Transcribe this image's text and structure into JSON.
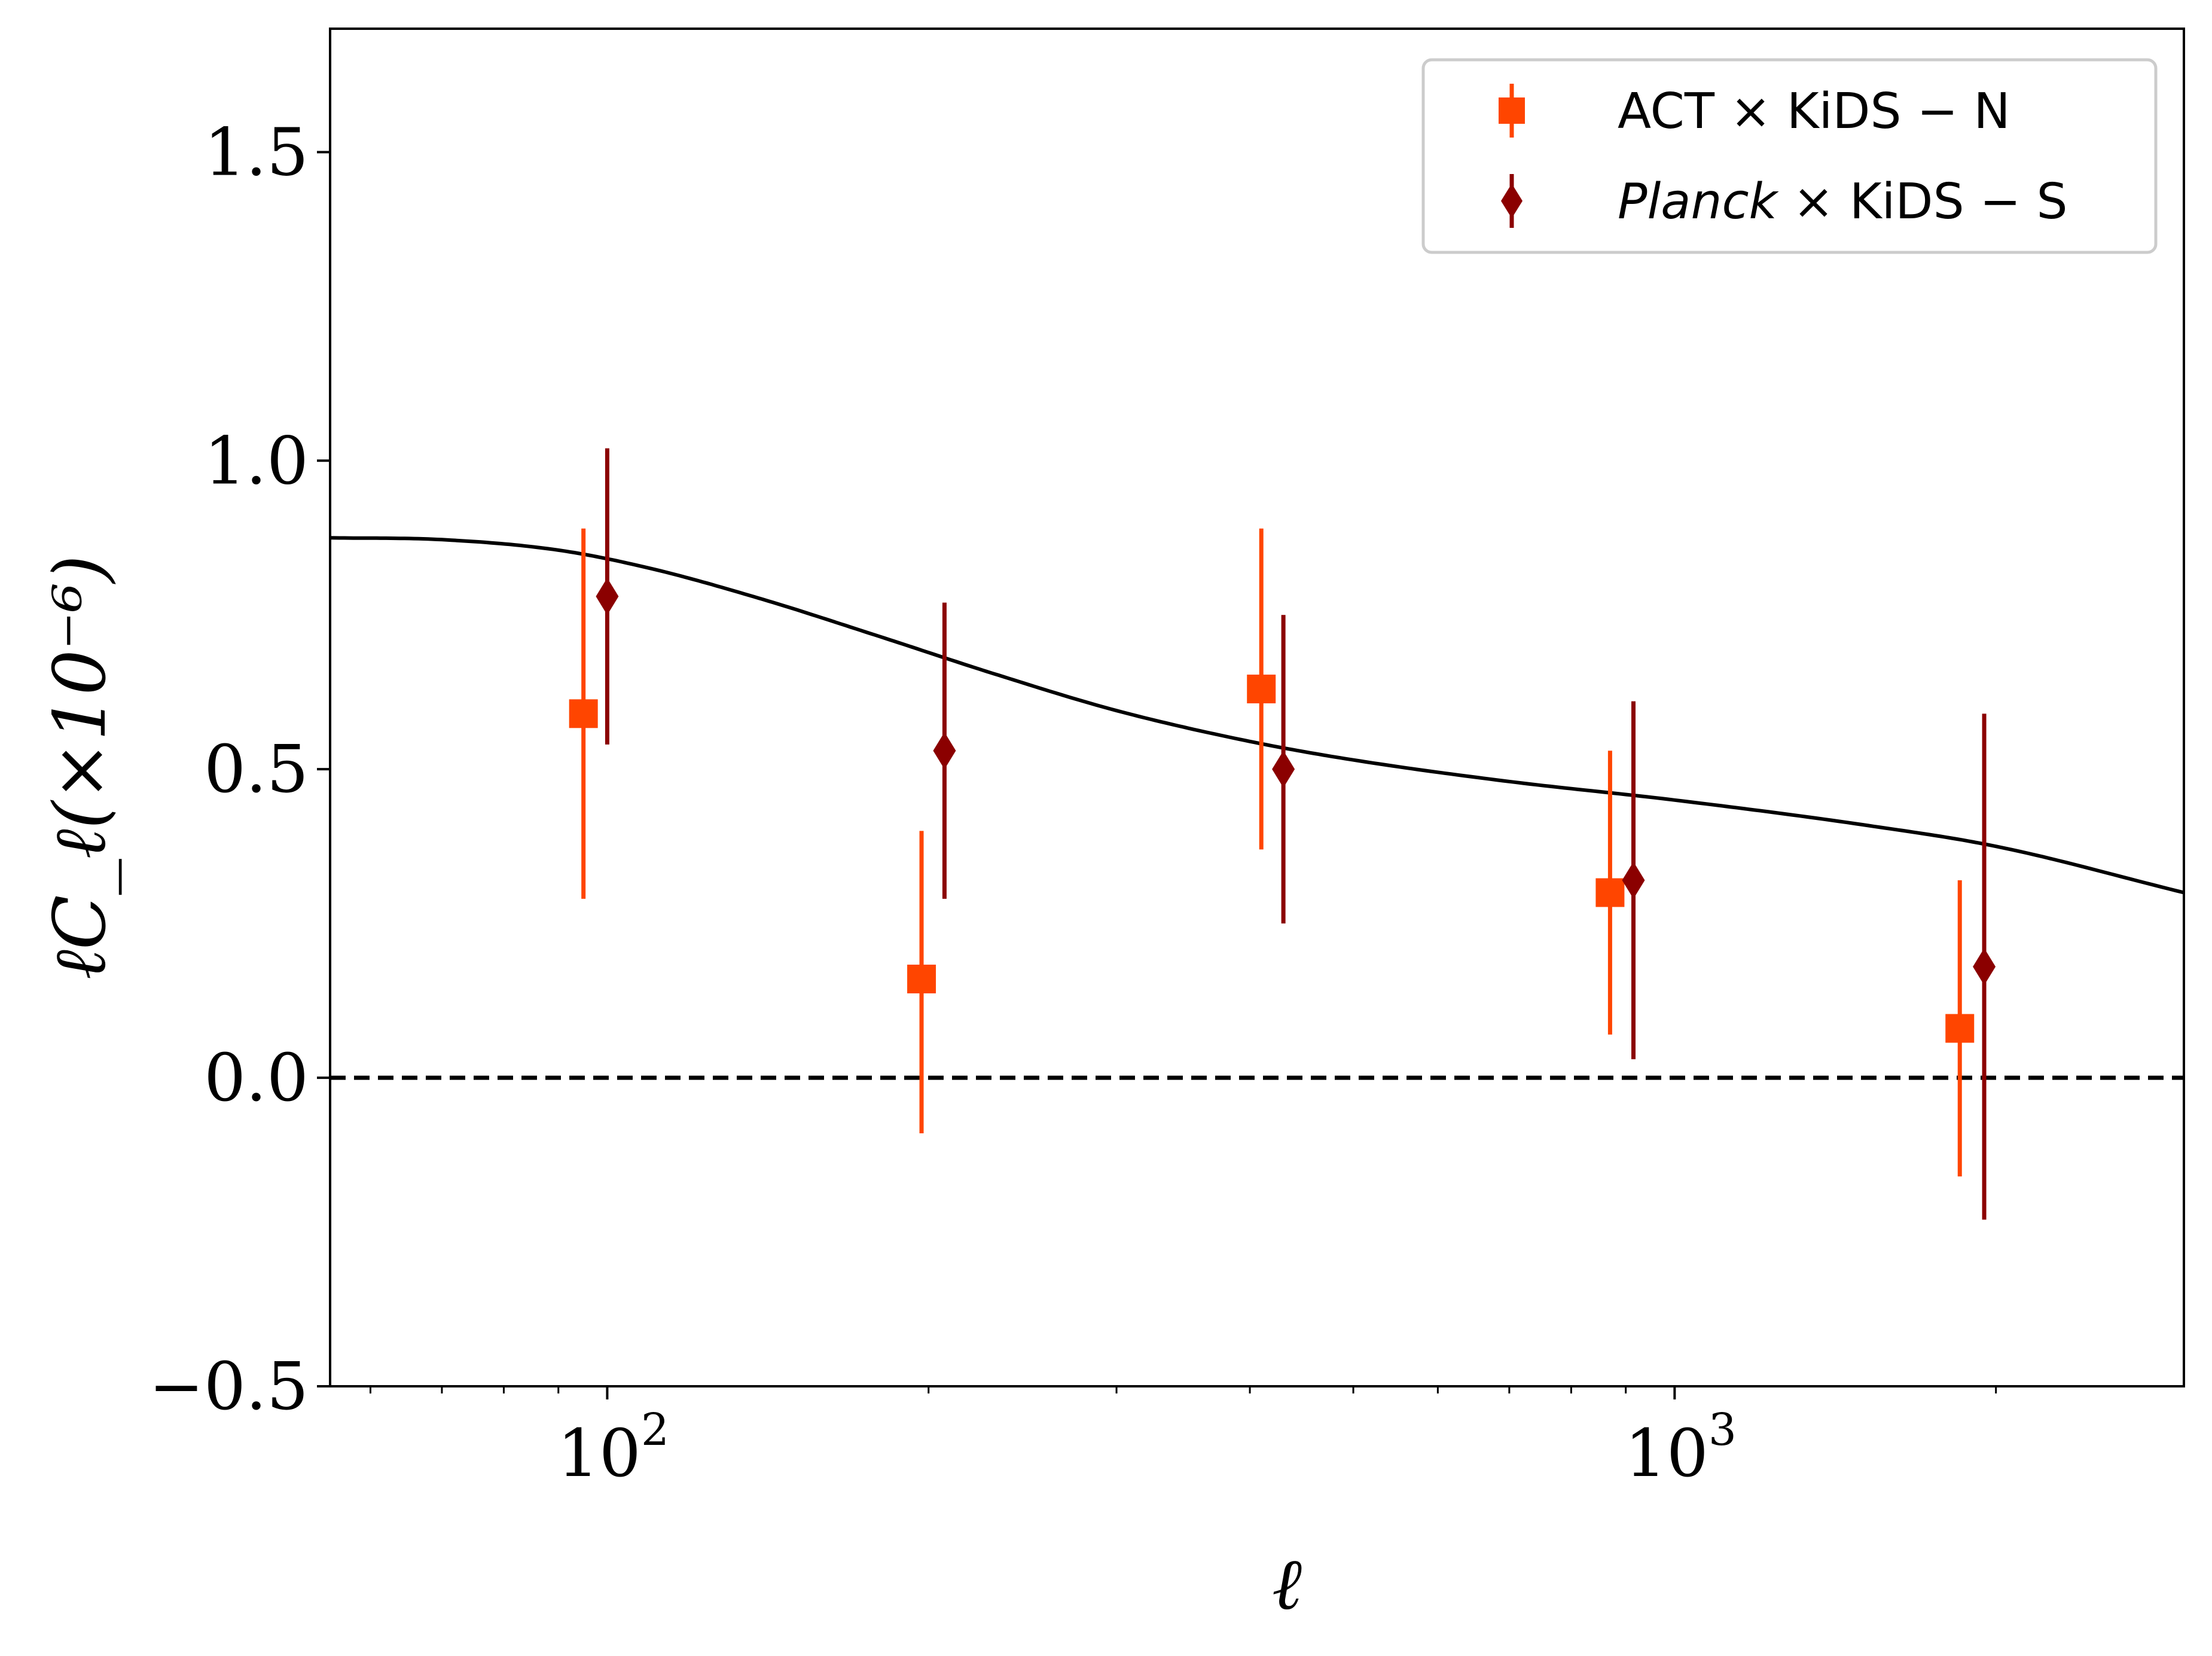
{
  "chart_data": {
    "type": "scatter",
    "xscale": "log",
    "xlim": [
      55,
      3000
    ],
    "ylim": [
      -0.5,
      1.7
    ],
    "xlabel": "ℓ",
    "ylabel": "ℓC_ℓ(×10⁻⁶)",
    "yticks": [
      "−0.5",
      "0.0",
      "0.5",
      "1.0",
      "1.5"
    ],
    "xticks": [
      {
        "base": "10",
        "exp": "2"
      },
      {
        "base": "10",
        "exp": "3"
      }
    ],
    "yticks_values": [
      -0.5,
      0.0,
      0.5,
      1.0,
      1.5
    ],
    "xticks_values": [
      100,
      1000
    ],
    "legend_position": "top-right",
    "series": [
      {
        "name": "ACT × KiDS − N",
        "legend": {
          "prefix": "",
          "italic": "",
          "suffix": "ACT × KiDS − N"
        },
        "marker": "square",
        "color": "#ff4500",
        "x": [
          95,
          197,
          410,
          870,
          1850
        ],
        "y": [
          0.59,
          0.16,
          0.63,
          0.3,
          0.08
        ],
        "yerr_low": [
          0.3,
          0.25,
          0.26,
          0.23,
          0.24
        ],
        "yerr_high": [
          0.3,
          0.24,
          0.26,
          0.23,
          0.24
        ]
      },
      {
        "name": "Planck × KiDS − S",
        "legend": {
          "prefix": "",
          "italic": "Planck",
          "suffix": " × KiDS − S"
        },
        "marker": "diamond",
        "color": "#8b0000",
        "x": [
          100,
          207,
          430,
          915,
          1950
        ],
        "y": [
          0.78,
          0.53,
          0.5,
          0.32,
          0.18
        ],
        "yerr_low": [
          0.24,
          0.24,
          0.25,
          0.29,
          0.41
        ],
        "yerr_high": [
          0.24,
          0.24,
          0.25,
          0.29,
          0.41
        ]
      }
    ],
    "theory_curve": {
      "name": "theory",
      "color": "#000000",
      "x": [
        55,
        70,
        90,
        110,
        140,
        180,
        230,
        300,
        400,
        500,
        700,
        1000,
        1500,
        2000,
        3000
      ],
      "y": [
        0.875,
        0.872,
        0.855,
        0.825,
        0.775,
        0.715,
        0.655,
        0.595,
        0.545,
        0.515,
        0.48,
        0.45,
        0.41,
        0.375,
        0.3
      ]
    },
    "reference_line": {
      "y": 0.0,
      "style": "dashed",
      "color": "#000000"
    }
  }
}
